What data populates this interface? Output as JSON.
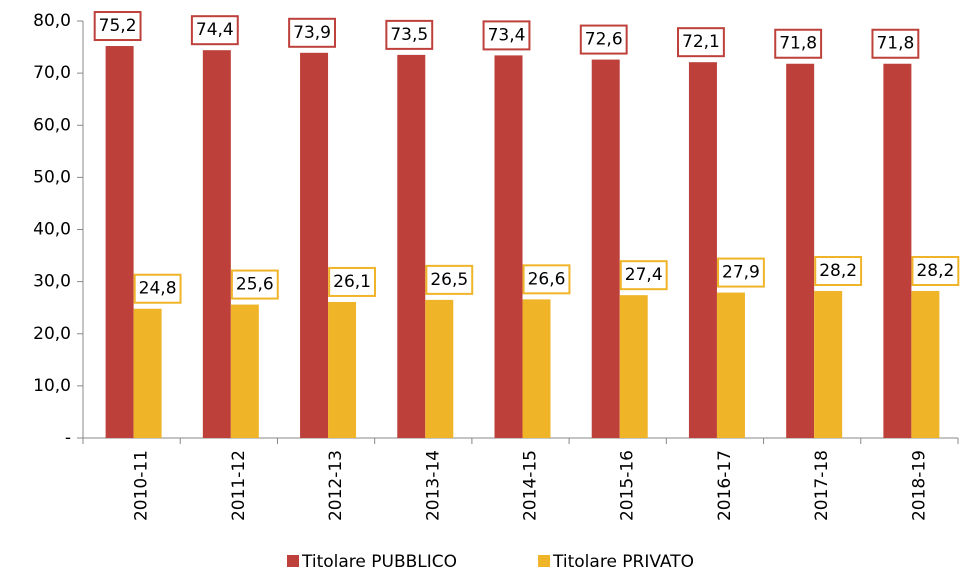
{
  "chart_data": {
    "type": "bar",
    "categories": [
      "2010-11",
      "2011-12",
      "2012-13",
      "2013-14",
      "2014-15",
      "2015-16",
      "2016-17",
      "2017-18",
      "2018-19"
    ],
    "series": [
      {
        "name": "Titolare PUBBLICO",
        "color": "#be403b",
        "values": [
          75.2,
          74.4,
          73.9,
          73.5,
          73.4,
          72.6,
          72.1,
          71.8,
          71.8
        ],
        "value_labels": [
          "75,2",
          "74,4",
          "73,9",
          "73,5",
          "73,4",
          "72,6",
          "72,1",
          "71,8",
          "71,8"
        ]
      },
      {
        "name": "Titolare PRIVATO",
        "color": "#f0b429",
        "values": [
          24.8,
          25.6,
          26.1,
          26.5,
          26.6,
          27.4,
          27.9,
          28.2,
          28.2
        ],
        "value_labels": [
          "24,8",
          "25,6",
          "26,1",
          "26,5",
          "26,6",
          "27,4",
          "27,9",
          "28,2",
          "28,2"
        ]
      }
    ],
    "ylim": [
      0,
      80
    ],
    "yticks": [
      {
        "value": 0,
        "label": "-"
      },
      {
        "value": 10,
        "label": "10,0"
      },
      {
        "value": 20,
        "label": "20,0"
      },
      {
        "value": 30,
        "label": "30,0"
      },
      {
        "value": 40,
        "label": "40,0"
      },
      {
        "value": 50,
        "label": "50,0"
      },
      {
        "value": 60,
        "label": "60,0"
      },
      {
        "value": 70,
        "label": "70,0"
      },
      {
        "value": 80,
        "label": "80,0"
      }
    ],
    "legend": "bottom",
    "grid": false
  }
}
